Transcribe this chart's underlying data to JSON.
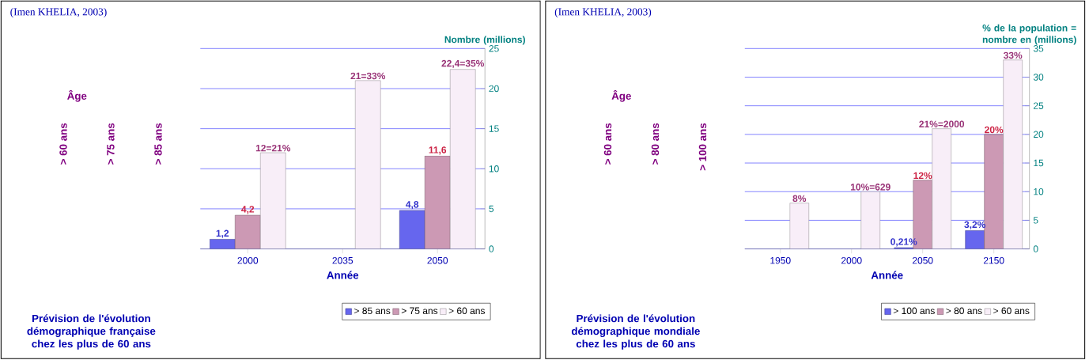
{
  "chart_data": [
    {
      "type": "bar",
      "title": "Prévision de l'évolution démographique française chez les plus de 60 ans",
      "xlabel": "Année",
      "ylabel": "Nombre (millions)",
      "categories": [
        "2000",
        "2035",
        "2050"
      ],
      "series": [
        {
          "name": "> 85 ans",
          "color": "#6666ee",
          "values": [
            1.2,
            null,
            4.8
          ],
          "value_labels": [
            "1,2",
            null,
            "4,8"
          ]
        },
        {
          "name": "> 75 ans",
          "color": "#cc99b4",
          "values": [
            4.2,
            null,
            11.6
          ],
          "value_labels": [
            "4,2",
            null,
            "11,6"
          ]
        },
        {
          "name": "> 60 ans",
          "color": "#f8eef8",
          "values": [
            12,
            21,
            22.4
          ],
          "value_labels": [
            "12=21%",
            "21=33%",
            "22,4=35%"
          ]
        }
      ],
      "ylim": [
        0,
        25
      ],
      "yticks": [
        0,
        5,
        10,
        15,
        20,
        25
      ],
      "grid": "y",
      "legend": "bottom right",
      "annotations": [
        "(Imen KHELIA, 2003)",
        "Âge",
        "> 60 ans",
        "> 75 ans",
        "> 85 ans"
      ]
    },
    {
      "type": "bar",
      "title": "Prévision de l'évolution démographique mondiale chez les plus de 60 ans",
      "xlabel": "Année",
      "ylabel": "% de la population = nombre en (millions)",
      "categories": [
        "1950",
        "2000",
        "2050",
        "2150"
      ],
      "series": [
        {
          "name": "> 100 ans",
          "color": "#6666ee",
          "values": [
            null,
            null,
            0.21,
            3.2
          ],
          "value_labels": [
            null,
            null,
            "0,21%",
            "3,2%"
          ]
        },
        {
          "name": "> 80 ans",
          "color": "#cc99b4",
          "values": [
            null,
            null,
            12,
            20
          ],
          "value_labels": [
            null,
            null,
            "12%",
            "20%"
          ]
        },
        {
          "name": "> 60 ans",
          "color": "#f8eef8",
          "values": [
            8,
            10,
            21,
            33
          ],
          "value_labels": [
            "8%",
            "10%=629",
            "21%=2000",
            "33%"
          ]
        }
      ],
      "ylim": [
        0,
        35
      ],
      "yticks": [
        0,
        5,
        10,
        15,
        20,
        25,
        30,
        35
      ],
      "grid": "y",
      "legend": "bottom right",
      "annotations": [
        "(Imen KHELIA, 2003)",
        "Âge",
        "> 60 ans",
        "> 80 ans",
        "> 100 ans"
      ]
    }
  ]
}
